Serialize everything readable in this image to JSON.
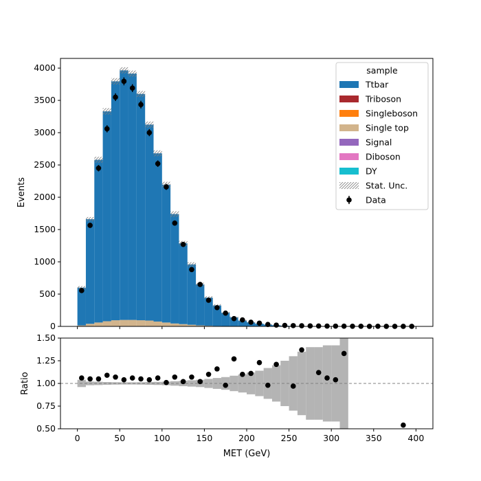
{
  "chart_data": [
    {
      "type": "bar",
      "stacked": true,
      "xlim": [
        -20,
        420
      ],
      "ylim": [
        0,
        4150
      ],
      "ylabel": "Events",
      "xticks": [
        0,
        50,
        100,
        150,
        200,
        250,
        300,
        350,
        400
      ],
      "yticks": [
        0,
        500,
        1000,
        1500,
        2000,
        2500,
        3000,
        3500,
        4000
      ],
      "bin_edges": [
        0,
        10,
        20,
        30,
        40,
        50,
        60,
        70,
        80,
        90,
        100,
        110,
        120,
        130,
        140,
        150,
        160,
        170,
        180,
        190,
        200,
        210,
        220,
        230,
        240,
        250,
        260,
        270,
        280,
        290,
        300,
        310,
        320,
        330,
        340,
        350,
        360,
        370,
        380,
        390,
        400
      ],
      "legend": {
        "title": "sample",
        "position": "upper right",
        "entries": [
          "Ttbar",
          "Triboson",
          "Singleboson",
          "Single top",
          "Signal",
          "Diboson",
          "DY",
          "Stat. Unc.",
          "Data"
        ]
      },
      "series": [
        {
          "name": "Single top",
          "color": "#d2b48c",
          "values": [
            15,
            40,
            60,
            80,
            95,
            100,
            100,
            95,
            90,
            75,
            60,
            45,
            35,
            25,
            15,
            10,
            6,
            3,
            2,
            1,
            1,
            1,
            0,
            0,
            0,
            0,
            0,
            0,
            0,
            0,
            0,
            0,
            0,
            0,
            0,
            0,
            0,
            0,
            0,
            0
          ]
        },
        {
          "name": "Ttbar",
          "color": "#1f77b4",
          "values": [
            585,
            1620,
            2520,
            3250,
            3700,
            3865,
            3815,
            3505,
            3035,
            2605,
            2135,
            1695,
            1250,
            935,
            635,
            435,
            318,
            208,
            139,
            89,
            61,
            41,
            28,
            18,
            10,
            6,
            4,
            3,
            2,
            2,
            1,
            1,
            1,
            1,
            0,
            0,
            0,
            0,
            0,
            0
          ]
        },
        {
          "name": "Triboson",
          "color": "#a9292e",
          "values": []
        },
        {
          "name": "Singleboson",
          "color": "#ff7f0e",
          "values": []
        },
        {
          "name": "Signal",
          "color": "#9467bd",
          "values": []
        },
        {
          "name": "Diboson",
          "color": "#e377c2",
          "values": []
        },
        {
          "name": "DY",
          "color": "#17becf",
          "values": []
        }
      ],
      "stat_unc_rel": [
        0.04,
        0.02,
        0.018,
        0.015,
        0.013,
        0.012,
        0.012,
        0.013,
        0.015,
        0.017,
        0.02,
        0.025,
        0.03,
        0.035,
        0.04,
        0.05,
        0.06,
        0.07,
        0.085,
        0.1,
        0.12,
        0.14,
        0.17,
        0.2,
        0.25,
        0.3,
        0.35,
        0.4,
        0.5,
        0.6,
        0.7,
        0.8,
        0.9,
        1,
        1,
        1,
        1,
        1,
        1,
        1
      ],
      "data": {
        "name": "Data",
        "x": [
          5,
          15,
          25,
          35,
          45,
          55,
          65,
          75,
          85,
          95,
          105,
          115,
          125,
          135,
          145,
          155,
          165,
          175,
          185,
          195,
          205,
          215,
          225,
          235,
          245,
          255,
          265,
          275,
          285,
          295,
          305,
          315,
          325,
          335,
          345,
          355,
          365,
          375,
          385,
          395
        ],
        "y": [
          555,
          1565,
          2450,
          3060,
          3550,
          3795,
          3690,
          3435,
          3000,
          2520,
          2160,
          1600,
          1270,
          880,
          650,
          405,
          290,
          205,
          120,
          100,
          65,
          50,
          30,
          20,
          15,
          12,
          10,
          7,
          6,
          5,
          4,
          3,
          2,
          2,
          1,
          2,
          1,
          1,
          1,
          1
        ]
      }
    },
    {
      "type": "scatter",
      "xlim": [
        -20,
        420
      ],
      "ylim": [
        0.5,
        1.5
      ],
      "xlabel": "MET (GeV)",
      "ylabel": "Ratio",
      "xticks": [
        0,
        50,
        100,
        150,
        200,
        250,
        300,
        350,
        400
      ],
      "yticks": [
        0.5,
        0.75,
        1.0,
        1.25,
        1.5
      ],
      "reference_line": 1.0,
      "unc_band_half_width": [
        0.04,
        0.02,
        0.018,
        0.015,
        0.013,
        0.012,
        0.012,
        0.013,
        0.015,
        0.017,
        0.02,
        0.025,
        0.03,
        0.035,
        0.04,
        0.05,
        0.06,
        0.07,
        0.085,
        0.1,
        0.12,
        0.14,
        0.17,
        0.2,
        0.25,
        0.3,
        0.35,
        0.4,
        0.4,
        0.42,
        0.42,
        0.5,
        0,
        0,
        0,
        0,
        0,
        0,
        0,
        0
      ],
      "points": {
        "x": [
          5,
          15,
          25,
          35,
          45,
          55,
          65,
          75,
          85,
          95,
          105,
          115,
          125,
          135,
          145,
          155,
          165,
          175,
          185,
          195,
          205,
          215,
          225,
          235,
          255,
          265,
          285,
          295,
          305,
          315,
          385
        ],
        "y": [
          1.06,
          1.05,
          1.05,
          1.09,
          1.07,
          1.04,
          1.06,
          1.05,
          1.04,
          1.06,
          1.01,
          1.07,
          1.02,
          1.07,
          1.02,
          1.1,
          1.16,
          0.98,
          1.27,
          1.1,
          1.11,
          1.23,
          0.98,
          1.21,
          0.97,
          1.37,
          1.12,
          1.06,
          1.04,
          1.33,
          0.54
        ]
      }
    }
  ]
}
